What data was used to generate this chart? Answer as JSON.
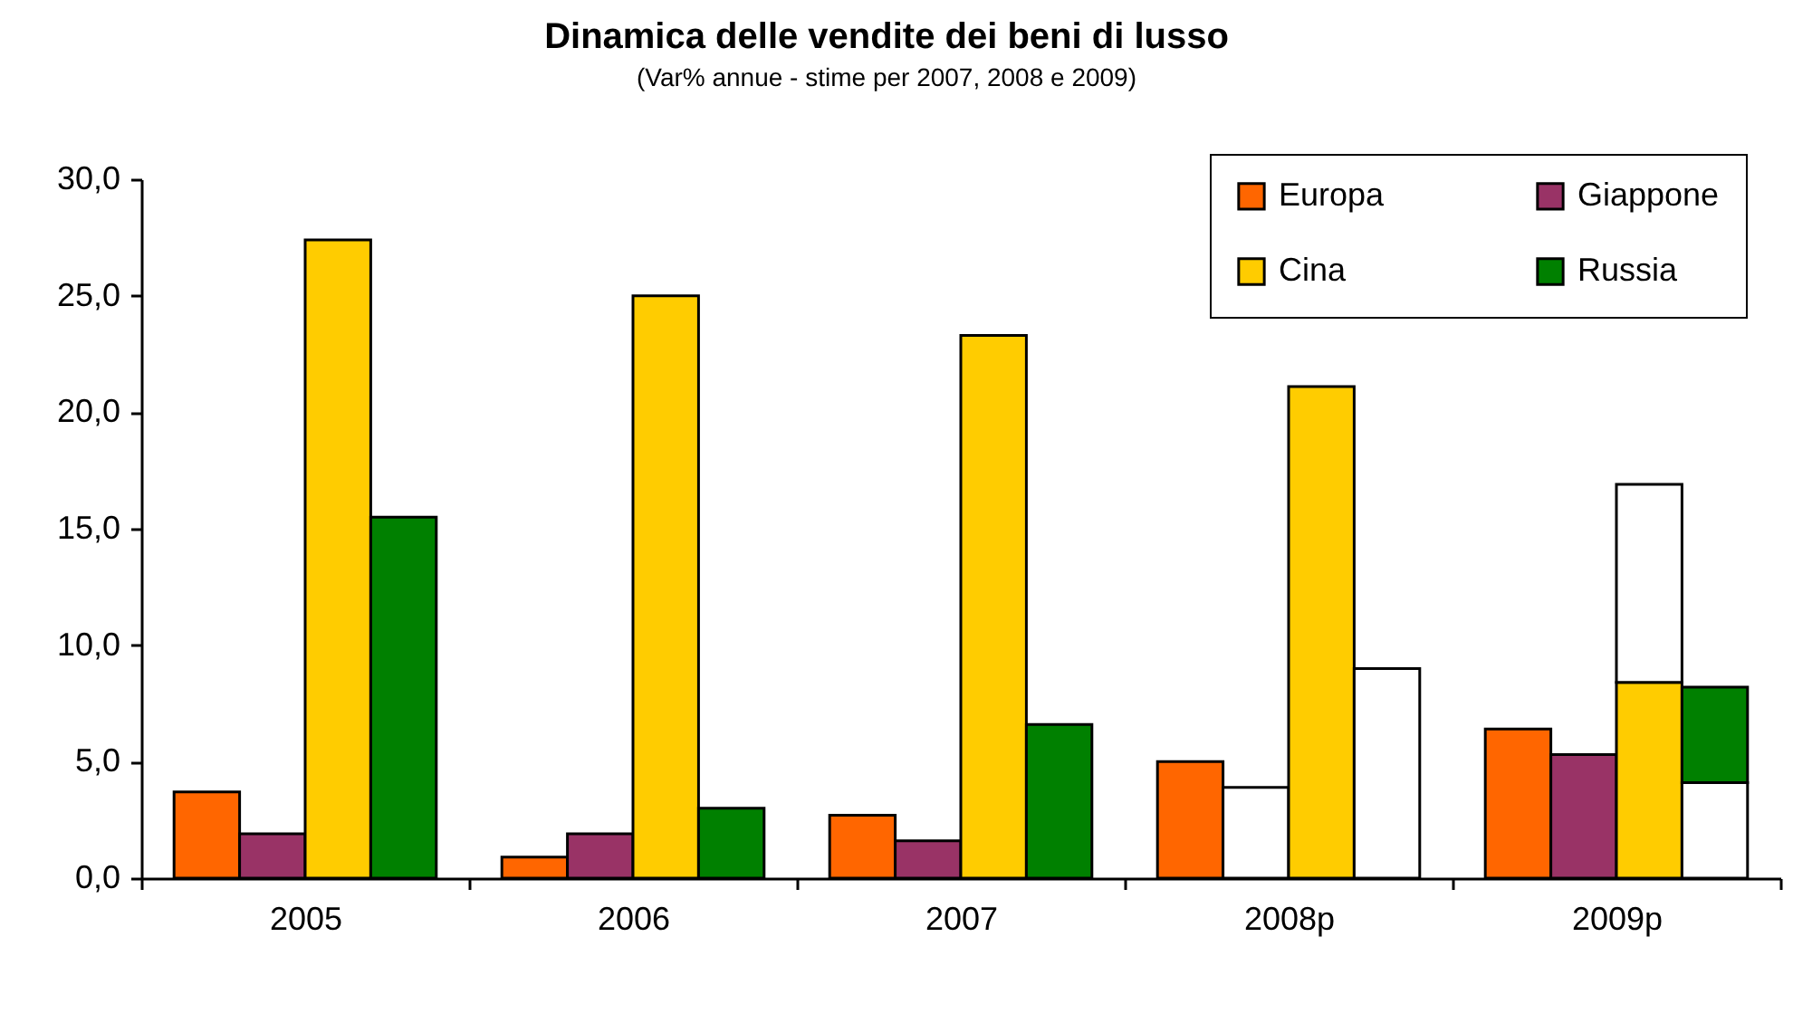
{
  "chart_data": {
    "type": "bar",
    "title": "Dinamica delle vendite dei beni di lusso",
    "subtitle": "(Var% annue - stime per 2007, 2008 e 2009)",
    "categories": [
      "2005",
      "2006",
      "2007",
      "2008p",
      "2009p"
    ],
    "series": [
      {
        "name": "Europa",
        "color": "#ff6600",
        "values": [
          3.7,
          0.9,
          2.7,
          5.0,
          6.4
        ]
      },
      {
        "name": "Giappone",
        "color": "#993366",
        "values": [
          1.9,
          1.9,
          1.6,
          3.9,
          5.3
        ],
        "colors": [
          "#993366",
          "#993366",
          "#993366",
          "#ffffff",
          "#993366"
        ]
      },
      {
        "name": "Cina",
        "color": "#ffcc00",
        "values": [
          27.4,
          25.0,
          23.3,
          21.1,
          8.4
        ]
      },
      {
        "color": "#ffffff",
        "values": [
          null,
          null,
          null,
          null,
          8.5
        ],
        "base": [
          null,
          null,
          null,
          null,
          8.4
        ]
      },
      {
        "name": "Russia",
        "color": "#008000",
        "values": [
          15.5,
          3.0,
          6.6,
          9.0,
          4.1
        ],
        "colors": [
          "#008000",
          "#008000",
          "#008000",
          "#ffffff",
          "#ffffff"
        ]
      },
      {
        "color": "#008000",
        "values": [
          null,
          null,
          null,
          null,
          4.1
        ],
        "base": [
          null,
          null,
          null,
          null,
          4.1
        ]
      }
    ],
    "ylim": [
      0,
      30
    ],
    "yticks": [
      {
        "value": 0,
        "label": "0,0"
      },
      {
        "value": 5,
        "label": "5,0"
      },
      {
        "value": 10,
        "label": "10,0"
      },
      {
        "value": 15,
        "label": "15,0"
      },
      {
        "value": 20,
        "label": "20,0"
      },
      {
        "value": 25,
        "label": "25,0"
      },
      {
        "value": 30,
        "label": "30,0"
      }
    ],
    "legend": "top right"
  }
}
